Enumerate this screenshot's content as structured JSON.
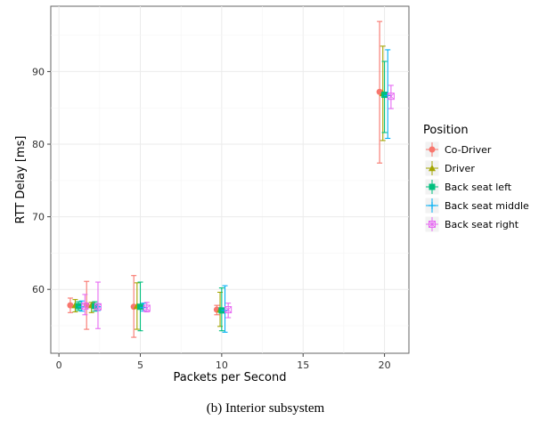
{
  "chart_data": {
    "type": "scatter",
    "caption": "(b) Interior subsystem",
    "xlabel": "Packets per Second",
    "ylabel": "RTT Delay [ms]",
    "xlim": [
      -0.5,
      21.5
    ],
    "ylim": [
      51.2,
      99.0
    ],
    "x_ticks": [
      0,
      5,
      10,
      15,
      20
    ],
    "y_ticks": [
      60,
      70,
      80,
      90
    ],
    "grid": true,
    "legend": {
      "title": "Position",
      "placement": "right"
    },
    "series": [
      {
        "name": "Co-Driver",
        "color": "#F8766D",
        "marker": "circle",
        "points": [
          {
            "x": 0.7,
            "y": 57.8,
            "low": 56.8,
            "high": 58.8
          },
          {
            "x": 1.7,
            "y": 57.8,
            "low": 54.5,
            "high": 61.1
          },
          {
            "x": 4.6,
            "y": 57.6,
            "low": 53.4,
            "high": 61.9
          },
          {
            "x": 9.7,
            "y": 57.2,
            "low": 56.5,
            "high": 57.8
          },
          {
            "x": 19.7,
            "y": 87.2,
            "low": 77.4,
            "high": 96.9
          }
        ]
      },
      {
        "name": "Driver",
        "color": "#A3A500",
        "marker": "triangle",
        "points": [
          {
            "x": 1.0,
            "y": 57.8,
            "low": 56.9,
            "high": 58.6
          },
          {
            "x": 2.0,
            "y": 57.8,
            "low": 56.8,
            "high": 58.2
          },
          {
            "x": 4.8,
            "y": 57.7,
            "low": 54.5,
            "high": 60.9
          },
          {
            "x": 9.9,
            "y": 57.2,
            "low": 54.9,
            "high": 59.6
          },
          {
            "x": 19.9,
            "y": 87.0,
            "low": 80.5,
            "high": 93.5
          }
        ]
      },
      {
        "name": "Back seat left",
        "color": "#00BF7D",
        "marker": "square",
        "points": [
          {
            "x": 1.2,
            "y": 57.7,
            "low": 57.1,
            "high": 58.3
          },
          {
            "x": 2.2,
            "y": 57.7,
            "low": 57.0,
            "high": 58.3
          },
          {
            "x": 5.0,
            "y": 57.6,
            "low": 54.3,
            "high": 61.0
          },
          {
            "x": 10.0,
            "y": 57.1,
            "low": 54.3,
            "high": 60.2
          },
          {
            "x": 20.0,
            "y": 86.8,
            "low": 81.6,
            "high": 91.4
          }
        ]
      },
      {
        "name": "Back seat middle",
        "color": "#00B0F6",
        "marker": "plus",
        "points": [
          {
            "x": 1.4,
            "y": 57.6,
            "low": 57.0,
            "high": 58.4
          },
          {
            "x": 2.4,
            "y": 57.6,
            "low": 57.1,
            "high": 58.0
          },
          {
            "x": 5.2,
            "y": 57.5,
            "low": 57.0,
            "high": 58.1
          },
          {
            "x": 10.2,
            "y": 57.1,
            "low": 54.1,
            "high": 60.5
          },
          {
            "x": 20.2,
            "y": 86.7,
            "low": 80.8,
            "high": 93.0
          }
        ]
      },
      {
        "name": "Back seat right",
        "color": "#E76BF3",
        "marker": "square-cross",
        "points": [
          {
            "x": 1.6,
            "y": 57.7,
            "low": 56.5,
            "high": 59.3
          },
          {
            "x": 2.4,
            "y": 57.6,
            "low": 54.6,
            "high": 61.0
          },
          {
            "x": 5.4,
            "y": 57.4,
            "low": 56.9,
            "high": 58.2
          },
          {
            "x": 10.4,
            "y": 57.2,
            "low": 56.1,
            "high": 58.1
          },
          {
            "x": 20.4,
            "y": 86.6,
            "low": 84.9,
            "high": 88.1
          }
        ]
      }
    ]
  }
}
